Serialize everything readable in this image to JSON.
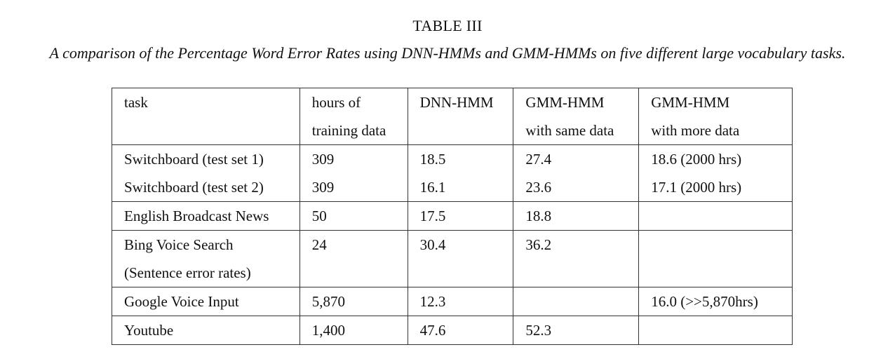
{
  "table_title": "TABLE III",
  "table_caption": "A comparison of the Percentage Word Error Rates using DNN-HMMs and GMM-HMMs on five different large vocabulary tasks.",
  "table": {
    "header": {
      "line1": [
        "task",
        "hours of",
        "DNN-HMM",
        "GMM-HMM",
        "GMM-HMM"
      ],
      "line2": [
        "",
        "training data",
        "",
        "with same data",
        "with more data"
      ]
    },
    "rows": [
      [
        "Switchboard (test set 1)",
        "309",
        "18.5",
        "27.4",
        "18.6 (2000 hrs)"
      ],
      [
        "Switchboard (test set 2)",
        "309",
        "16.1",
        "23.6",
        "17.1 (2000 hrs)"
      ],
      [
        "English Broadcast News",
        "50",
        "17.5",
        "18.8",
        ""
      ],
      [
        "Bing Voice Search",
        "24",
        "30.4",
        "36.2",
        ""
      ],
      [
        "(Sentence error rates)",
        "",
        "",
        "",
        ""
      ],
      [
        "Google Voice Input",
        "5,870",
        "12.3",
        "",
        "16.0 (>>5,870hrs)"
      ],
      [
        "Youtube",
        "1,400",
        "47.6",
        "52.3",
        ""
      ]
    ]
  }
}
